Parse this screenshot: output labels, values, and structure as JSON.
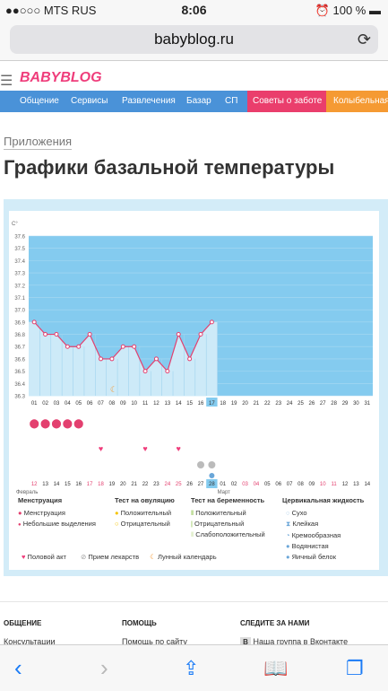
{
  "statusbar": {
    "carrier": "●●○○○ MTS RUS",
    "time": "8:06",
    "battery": "100 %"
  },
  "browser": {
    "url": "babyblog.ru"
  },
  "site": {
    "logo": "BABYBLOG",
    "nav": [
      "Общение",
      "Сервисы",
      "Развлечения",
      "Базар",
      "СП",
      "Советы о заботе",
      "Колыбельная"
    ]
  },
  "page": {
    "breadcrumb": "Приложения",
    "title": "Графики базальной температуры"
  },
  "chart_data": {
    "type": "line",
    "y_unit": "C°",
    "ylim": [
      36.3,
      37.6
    ],
    "y_ticks": [
      "37.6",
      "37.5",
      "37.4",
      "37.3",
      "37.2",
      "37.1",
      "37.0",
      "36.9",
      "36.8",
      "36.7",
      "36.6",
      "36.5",
      "36.4",
      "36.3"
    ],
    "x_days": [
      "01",
      "02",
      "03",
      "04",
      "05",
      "06",
      "07",
      "08",
      "09",
      "10",
      "11",
      "12",
      "13",
      "14",
      "15",
      "16",
      "17",
      "18",
      "19",
      "20",
      "21",
      "22",
      "23",
      "24",
      "25",
      "26",
      "27",
      "28",
      "29",
      "30",
      "31"
    ],
    "month_bottom_days": [
      "12",
      "13",
      "14",
      "15",
      "16",
      "17",
      "18",
      "19",
      "20",
      "21",
      "22",
      "23",
      "24",
      "25",
      "26",
      "27",
      "28",
      "01",
      "02",
      "03",
      "04",
      "05",
      "06",
      "07",
      "08",
      "09",
      "10",
      "11",
      "12",
      "13",
      "14"
    ],
    "month_bottom_red": [
      0,
      5,
      6,
      12,
      13,
      19,
      20,
      26,
      27
    ],
    "month_labels": [
      "Февраль",
      "Март"
    ],
    "highlight_days": [
      "17",
      "28"
    ],
    "series": [
      {
        "values": [
          36.9,
          36.8,
          36.8,
          36.7,
          36.7,
          36.8,
          36.6,
          36.6,
          36.7,
          36.7,
          36.5,
          36.6,
          36.5,
          36.8,
          36.6,
          36.8,
          36.9
        ]
      }
    ],
    "menstruation_days": [
      1,
      2,
      3,
      4,
      5
    ],
    "intercourse_days": [
      7,
      11,
      14
    ],
    "medication_days": [
      16,
      17
    ],
    "ovulation_test_day": 7,
    "lunar_day": 8
  },
  "legend": {
    "col1": {
      "title": "Менструация",
      "items": [
        "Менструация",
        "Небольшие выделения"
      ]
    },
    "col2": {
      "title": "Тест на овуляцию",
      "items": [
        "Положительный",
        "Отрицательный"
      ]
    },
    "col3": {
      "title": "Тест на беременность",
      "items": [
        "Положительный",
        "Отрицательный",
        "Слабоположительный"
      ]
    },
    "col4": {
      "title": "Цервикальная жидкость",
      "items": [
        "Сухо",
        "Клейкая",
        "Кремообразная",
        "Водянистая",
        "Яичный белок"
      ]
    },
    "bottom": [
      "Половой акт",
      "Прием лекарств",
      "Лунный календарь"
    ]
  },
  "footer": {
    "sections": [
      "ОБЩЕНИЕ",
      "ПОМОЩЬ",
      "СЛЕДИТЕ ЗА НАМИ"
    ],
    "links": [
      "Консультации",
      "Помощь по сайту",
      "Наша группа в Вконтакте"
    ]
  },
  "colors": {
    "chart_fill": "#84cbef",
    "line": "#e3406f",
    "accent": "#4a92d8"
  }
}
